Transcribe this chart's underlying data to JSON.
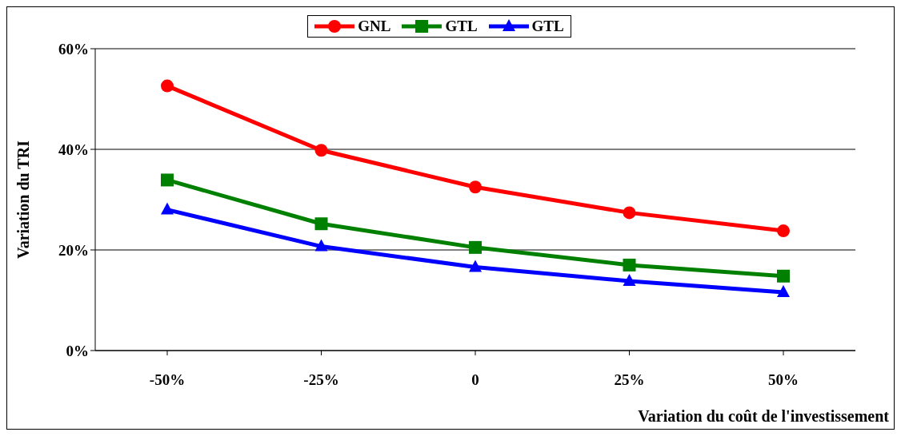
{
  "chart_data": {
    "type": "line",
    "categories": [
      "-50%",
      "-25%",
      "0",
      "25%",
      "50%"
    ],
    "series": [
      {
        "name": "GNL",
        "color": "#ff0000",
        "marker": "circle",
        "values": [
          52.6,
          39.8,
          32.5,
          27.4,
          23.8
        ]
      },
      {
        "name": "GTL",
        "color": "#008000",
        "marker": "square",
        "values": [
          33.9,
          25.2,
          20.5,
          17.0,
          14.8
        ]
      },
      {
        "name": "GTL",
        "color": "#0000ff",
        "marker": "triangle",
        "values": [
          28.0,
          20.7,
          16.6,
          13.8,
          11.6
        ]
      }
    ],
    "ylabel": "Variation du TRI",
    "xlabel": "Variation du coût de l'investissement",
    "ylim": [
      0,
      60
    ],
    "yticks": [
      {
        "value": 0,
        "label": "0%"
      },
      {
        "value": 20,
        "label": "20%"
      },
      {
        "value": 40,
        "label": "40%"
      },
      {
        "value": 60,
        "label": "60%"
      }
    ],
    "grid": "y",
    "legend": "top"
  }
}
